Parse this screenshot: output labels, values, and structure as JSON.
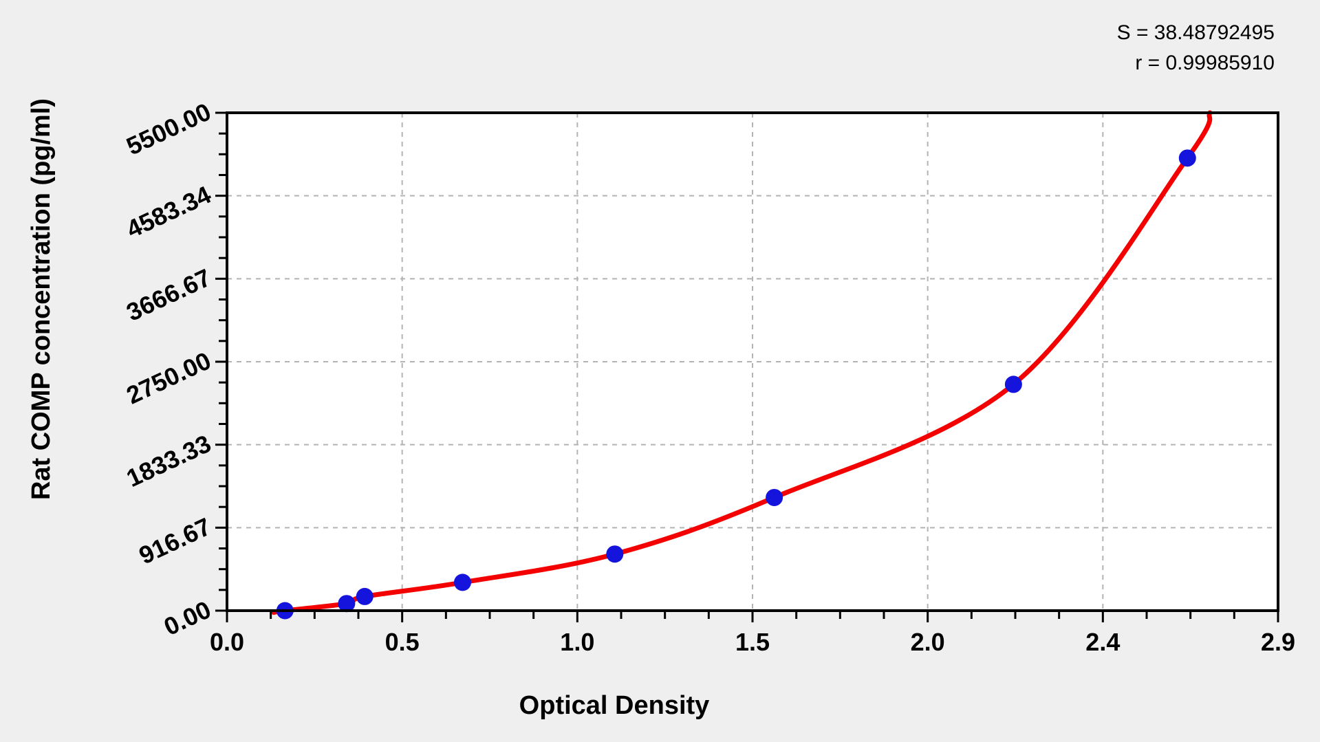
{
  "annotations": {
    "s_line": "S = 38.48792495",
    "r_line": "r = 0.99985910"
  },
  "x_axis": {
    "title": "Optical Density",
    "ticks": [
      "0.0",
      "0.5",
      "1.0",
      "1.5",
      "2.0",
      "2.4",
      "2.9"
    ]
  },
  "y_axis": {
    "title": "Rat COMP concentration (pg/ml)",
    "ticks": [
      "0.00",
      "916.67",
      "1833.33",
      "2750.00",
      "3666.67",
      "4583.34",
      "5500.00"
    ]
  },
  "chart_data": {
    "type": "scatter",
    "title": "",
    "xlabel": "Optical Density",
    "ylabel": "Rat COMP concentration (pg/ml)",
    "xlim": [
      0,
      2.9
    ],
    "ylim": [
      0,
      5500
    ],
    "grid": "dashed major gridlines",
    "legend_position": "none",
    "x_major_tick_count": 7,
    "y_major_tick_count": 7,
    "minor_ticks_per_major": 3,
    "points": {
      "x_optical_density": [
        0.16,
        0.33,
        0.38,
        0.65,
        1.07,
        1.51,
        2.17,
        2.65
      ],
      "y_concentration_pg_ml": [
        0,
        78.125,
        156.25,
        312.5,
        625,
        1250,
        2500,
        5000
      ]
    },
    "fit_curve": {
      "description": "smooth regression curve through standards, S = 38.48792495, r = 0.99985910",
      "anchors_od_conc": [
        [
          0.129,
          -20
        ],
        [
          0.16,
          0
        ],
        [
          0.33,
          78
        ],
        [
          0.38,
          156
        ],
        [
          0.65,
          312
        ],
        [
          1.07,
          625
        ],
        [
          1.51,
          1250
        ],
        [
          2.17,
          2500
        ],
        [
          2.65,
          5000
        ],
        [
          2.712,
          5500
        ]
      ]
    },
    "colors": {
      "point": "#1414dd",
      "curve": "#f40000",
      "grid": "#b3b3b3",
      "frame": "#000000",
      "plot_background": "#ffffff",
      "figure_background": "#efefef"
    }
  }
}
